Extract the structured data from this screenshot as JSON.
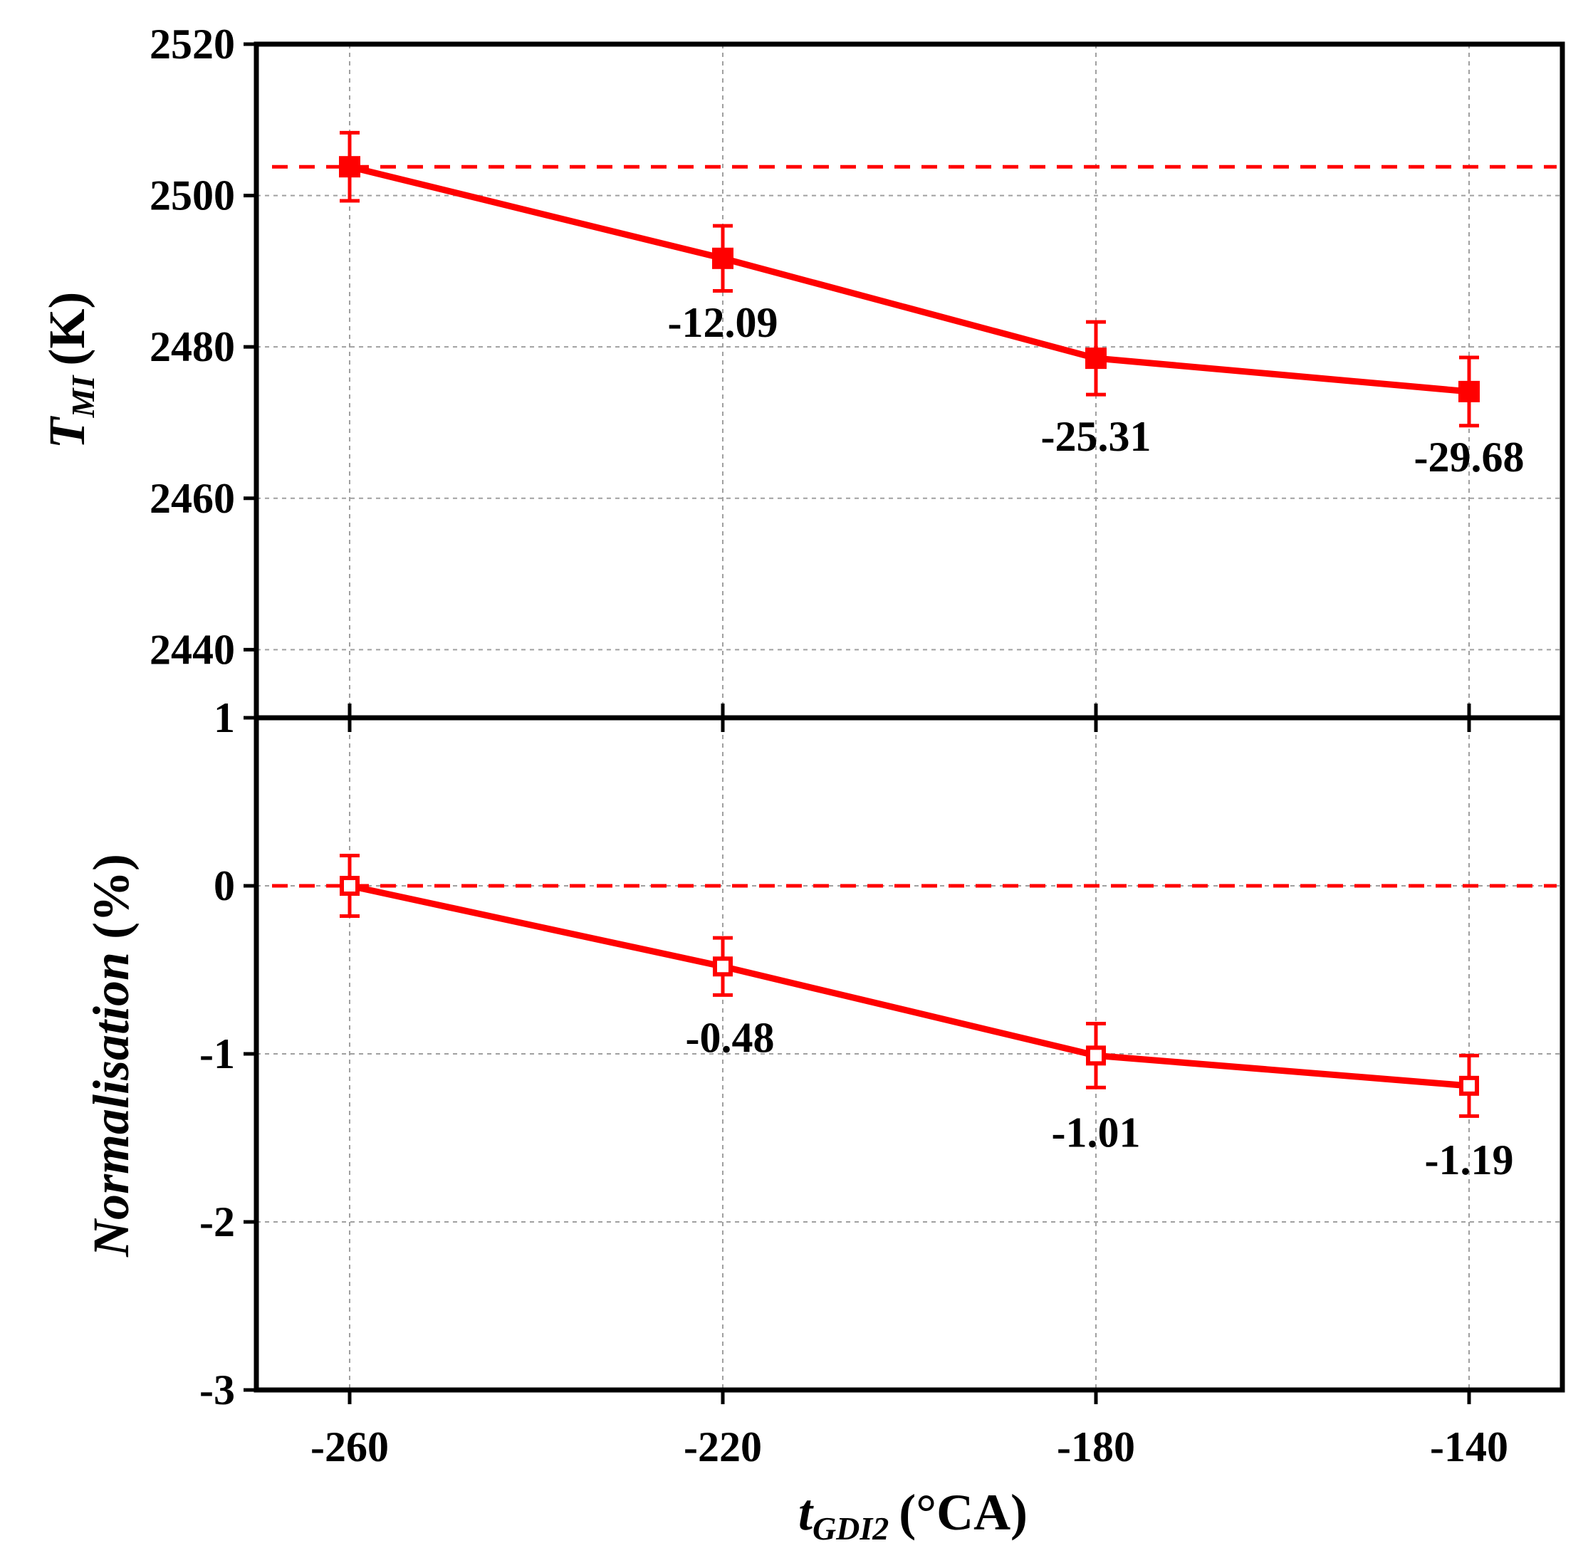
{
  "colors": {
    "series": "#ff0000",
    "frame": "#000000",
    "grid": "#a0a0a0"
  },
  "chart_data": [
    {
      "type": "line",
      "panel": "top",
      "x": [
        -260,
        -220,
        -180,
        -140
      ],
      "values": [
        2503.8,
        2491.7,
        2478.5,
        2474.1
      ],
      "errors": [
        4.5,
        4.3,
        4.8,
        4.5
      ],
      "reference_value": 2503.8,
      "marker": "filled-square",
      "ylabel_main": "T",
      "ylabel_sub": "MI",
      "ylabel_unit": "(K)",
      "ylim": [
        2431,
        2520
      ],
      "yticks": [
        2440,
        2460,
        2480,
        2500,
        2520
      ],
      "annotations": [
        "-12.09",
        "-25.31",
        "-29.68"
      ],
      "grid": true
    },
    {
      "type": "line",
      "panel": "bottom",
      "x": [
        -260,
        -220,
        -180,
        -140
      ],
      "values": [
        0,
        -0.48,
        -1.01,
        -1.19
      ],
      "errors": [
        0.18,
        0.17,
        0.19,
        0.18
      ],
      "reference_value": 0,
      "marker": "open-square",
      "ylabel": "Normalisation",
      "ylabel_unit": "(%)",
      "ylim": [
        -3,
        1
      ],
      "yticks": [
        -3,
        -2,
        -1,
        0,
        1
      ],
      "annotations": [
        "-0.48",
        "-1.01",
        "-1.19"
      ],
      "grid": true
    }
  ],
  "xaxis": {
    "ticks": [
      -260,
      -220,
      -180,
      -140
    ],
    "xlim": [
      -270,
      -130
    ],
    "label_main": "t",
    "label_sub": "GDI2",
    "label_unit": "(°CA)"
  }
}
